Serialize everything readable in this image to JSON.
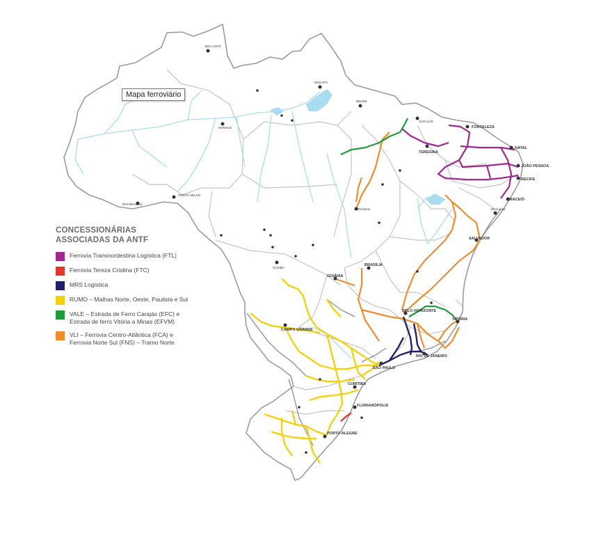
{
  "tooltip": {
    "text": "Mapa ferroviário"
  },
  "legend": {
    "title_lines": [
      "CONCESSIONÁRIAS",
      "ASSOCIADAS DA ANTF"
    ],
    "items": [
      {
        "color": "#a0278f",
        "lines": [
          "Ferrovia Transnordestina Logística (FTL)"
        ]
      },
      {
        "color": "#e6382a",
        "lines": [
          "Ferrovia Tereza Cristina (FTC)"
        ]
      },
      {
        "color": "#231f6b",
        "lines": [
          "MRS Logística"
        ]
      },
      {
        "color": "#f5d10c",
        "lines": [
          "RUMO – Malhas Norte, Oeste, Paulista e Sul"
        ]
      },
      {
        "color": "#1e9b3a",
        "lines": [
          "VALE – Estrada de Ferro Carajás (EFC) e",
          "Estrada de ferro Vitória a Minas (EFVM)"
        ]
      },
      {
        "color": "#f28c28",
        "lines": [
          "VLI – Ferrovia Centro-Atlântica (FCA) e",
          "Ferrovia Norte Sul (FNS) – Tramo Norte"
        ]
      }
    ]
  },
  "cities": [
    {
      "name": "BOA VISTA",
      "big": false
    },
    {
      "name": "MACAPÁ",
      "big": false
    },
    {
      "name": "BELÉM",
      "big": false
    },
    {
      "name": "SÃO LUÍS",
      "big": false
    },
    {
      "name": "FORTALEZA",
      "big": true
    },
    {
      "name": "NATAL",
      "big": true
    },
    {
      "name": "JOÃO PESSOA",
      "big": true
    },
    {
      "name": "RECIFE",
      "big": true
    },
    {
      "name": "MACEIÓ",
      "big": true
    },
    {
      "name": "SALVADOR",
      "big": true
    },
    {
      "name": "TERESINA",
      "big": true
    },
    {
      "name": "PALMAS",
      "big": false
    },
    {
      "name": "MANAUS",
      "big": false
    },
    {
      "name": "PORTO VELHO",
      "big": false
    },
    {
      "name": "RIO BRANCO",
      "big": false
    },
    {
      "name": "CUIABÁ",
      "big": false
    },
    {
      "name": "BRASÍLIA",
      "big": true
    },
    {
      "name": "GOIÂNIA",
      "big": true
    },
    {
      "name": "CAMPO GRANDE",
      "big": true
    },
    {
      "name": "BELO HORIZONTE",
      "big": true
    },
    {
      "name": "VITÓRIA",
      "big": true
    },
    {
      "name": "RIO DE JANEIRO",
      "big": true
    },
    {
      "name": "SÃO PAULO",
      "big": true
    },
    {
      "name": "CURITIBA",
      "big": true
    },
    {
      "name": "FLORIANÓPOLIS",
      "big": true
    },
    {
      "name": "PORTO ALEGRE",
      "big": true
    },
    {
      "name": "ARACAJU",
      "big": false
    }
  ],
  "colors": {
    "border": "#9a9a9a",
    "state_border": "#c4c4c4",
    "river": "#a9dcf0",
    "rail_gray": "#8c8c8c",
    "ftl": "#a0278f",
    "ftc": "#e6382a",
    "mrs": "#231f6b",
    "rumo": "#f5d10c",
    "vale": "#1e9b3a",
    "vli": "#f28c28"
  }
}
